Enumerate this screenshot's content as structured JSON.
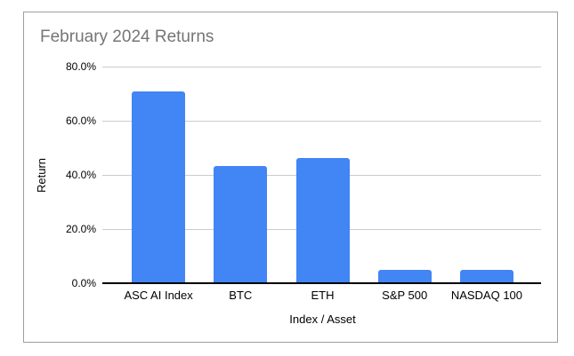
{
  "chart_data": {
    "type": "bar",
    "title": "February 2024 Returns",
    "xlabel": "Index / Asset",
    "ylabel": "Return",
    "categories": [
      "ASC AI Index",
      "BTC",
      "ETH",
      "S&P 500",
      "NASDAQ 100"
    ],
    "values": [
      70.7,
      43.3,
      46.2,
      4.9,
      4.9
    ],
    "value_unit": "%",
    "ylim": [
      0,
      80
    ],
    "yticks": [
      0,
      20,
      40,
      60,
      80
    ],
    "ytick_labels": [
      "0.0%",
      "20.0%",
      "40.0%",
      "60.0%",
      "80.0%"
    ],
    "grid": true,
    "legend": false,
    "bar_color": "#4285f4"
  },
  "colors": {
    "bar": "#4285f4",
    "title_text": "#757575",
    "axis_text": "#000000",
    "gridline": "#cccccc",
    "axis_line": "#000000",
    "frame_border": "#9e9e9e",
    "background": "#ffffff"
  }
}
